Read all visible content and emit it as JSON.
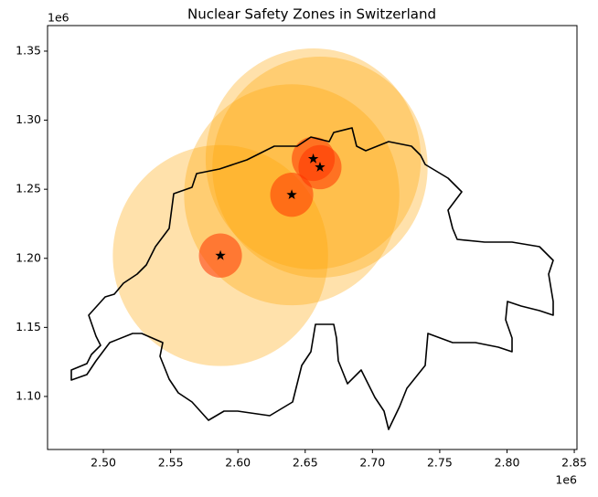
{
  "chart_data": {
    "type": "scatter",
    "title": "Nuclear Safety Zones in Switzerland",
    "x_offset_label": "1e6",
    "y_offset_label": "1e6",
    "x": [
      2.587,
      2.64,
      2.656,
      2.661
    ],
    "y": [
      1.202,
      1.246,
      1.272,
      1.266
    ],
    "outer_radius": 0.08,
    "inner_radius": 0.016,
    "outer_color": "#ffa500",
    "inner_color": "#ff3300",
    "marker_color": "#000000",
    "xlim": [
      2.4585,
      2.852
    ],
    "ylim": [
      1.0616,
      1.3685
    ],
    "xticks": [
      {
        "value": 2.5,
        "label": "2.50"
      },
      {
        "value": 2.55,
        "label": "2.55"
      },
      {
        "value": 2.6,
        "label": "2.60"
      },
      {
        "value": 2.65,
        "label": "2.65"
      },
      {
        "value": 2.7,
        "label": "2.70"
      },
      {
        "value": 2.75,
        "label": "2.75"
      },
      {
        "value": 2.8,
        "label": "2.80"
      },
      {
        "value": 2.85,
        "label": "2.85"
      }
    ],
    "yticks": [
      {
        "value": 1.1,
        "label": "1.10"
      },
      {
        "value": 1.15,
        "label": "1.15"
      },
      {
        "value": 1.2,
        "label": "1.20"
      },
      {
        "value": 1.25,
        "label": "1.25"
      },
      {
        "value": 1.3,
        "label": "1.30"
      },
      {
        "value": 1.35,
        "label": "1.35"
      }
    ]
  }
}
